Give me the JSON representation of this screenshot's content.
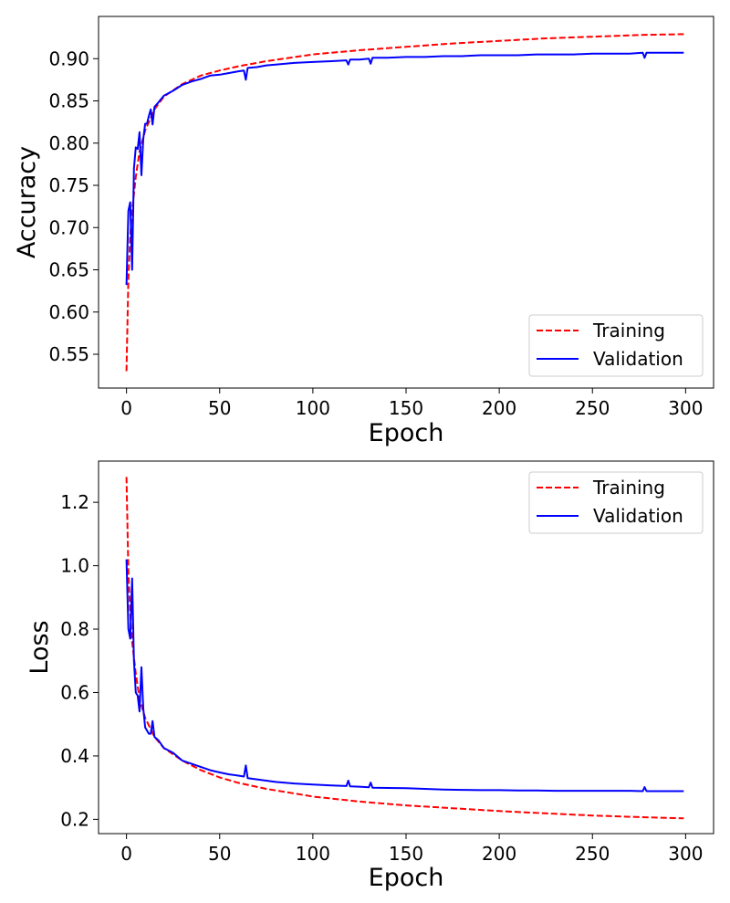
{
  "chart_data": [
    {
      "type": "line",
      "title": "",
      "xlabel": "Epoch",
      "ylabel": "Accuracy",
      "xlim": [
        -15,
        315
      ],
      "ylim": [
        0.51,
        0.95
      ],
      "xticks": [
        0,
        50,
        100,
        150,
        200,
        250,
        300
      ],
      "yticks": [
        0.55,
        0.6,
        0.65,
        0.7,
        0.75,
        0.8,
        0.85,
        0.9
      ],
      "ytick_labels": [
        "0.55",
        "0.60",
        "0.65",
        "0.70",
        "0.75",
        "0.80",
        "0.85",
        "0.90"
      ],
      "grid": false,
      "legend_position": "lower-right",
      "series": [
        {
          "name": "Training",
          "color": "#ff0000",
          "style": "dashed",
          "x": [
            0,
            1,
            2,
            3,
            5,
            7,
            10,
            15,
            20,
            30,
            40,
            50,
            60,
            75,
            100,
            125,
            150,
            175,
            200,
            225,
            250,
            275,
            299
          ],
          "y": [
            0.53,
            0.64,
            0.69,
            0.72,
            0.76,
            0.79,
            0.815,
            0.84,
            0.855,
            0.87,
            0.88,
            0.886,
            0.891,
            0.897,
            0.905,
            0.91,
            0.914,
            0.918,
            0.921,
            0.924,
            0.926,
            0.928,
            0.929
          ]
        },
        {
          "name": "Validation",
          "color": "#0000ff",
          "style": "solid",
          "x": [
            0,
            1,
            2,
            3,
            4,
            5,
            6,
            7,
            8,
            9,
            10,
            11,
            12,
            13,
            14,
            15,
            17,
            20,
            25,
            30,
            35,
            40,
            45,
            50,
            55,
            60,
            63,
            64,
            65,
            70,
            75,
            80,
            90,
            100,
            110,
            118,
            119,
            120,
            125,
            130,
            131,
            132,
            140,
            150,
            160,
            170,
            180,
            190,
            200,
            210,
            220,
            230,
            240,
            250,
            260,
            270,
            277,
            278,
            279,
            285,
            290,
            299
          ],
          "y": [
            0.632,
            0.72,
            0.73,
            0.65,
            0.77,
            0.795,
            0.793,
            0.813,
            0.762,
            0.805,
            0.823,
            0.823,
            0.832,
            0.84,
            0.822,
            0.843,
            0.848,
            0.856,
            0.862,
            0.869,
            0.873,
            0.876,
            0.88,
            0.881,
            0.883,
            0.885,
            0.886,
            0.875,
            0.889,
            0.89,
            0.892,
            0.893,
            0.895,
            0.896,
            0.897,
            0.898,
            0.893,
            0.899,
            0.899,
            0.9,
            0.894,
            0.901,
            0.901,
            0.902,
            0.902,
            0.903,
            0.903,
            0.904,
            0.904,
            0.904,
            0.905,
            0.905,
            0.905,
            0.906,
            0.906,
            0.906,
            0.907,
            0.901,
            0.907,
            0.907,
            0.907,
            0.907
          ]
        }
      ]
    },
    {
      "type": "line",
      "title": "",
      "xlabel": "Epoch",
      "ylabel": "Loss",
      "xlim": [
        -15,
        315
      ],
      "ylim": [
        0.155,
        1.33
      ],
      "xticks": [
        0,
        50,
        100,
        150,
        200,
        250,
        300
      ],
      "yticks": [
        0.2,
        0.4,
        0.6,
        0.8,
        1.0,
        1.2
      ],
      "ytick_labels": [
        "0.2",
        "0.4",
        "0.6",
        "0.8",
        "1.0",
        "1.2"
      ],
      "grid": false,
      "legend_position": "upper-right",
      "series": [
        {
          "name": "Training",
          "color": "#ff0000",
          "style": "dashed",
          "x": [
            0,
            1,
            2,
            3,
            5,
            7,
            10,
            15,
            20,
            30,
            40,
            50,
            60,
            75,
            100,
            125,
            150,
            175,
            200,
            225,
            250,
            275,
            299
          ],
          "y": [
            1.28,
            0.98,
            0.85,
            0.76,
            0.66,
            0.58,
            0.52,
            0.46,
            0.425,
            0.385,
            0.355,
            0.332,
            0.315,
            0.296,
            0.272,
            0.256,
            0.244,
            0.235,
            0.226,
            0.219,
            0.212,
            0.207,
            0.203
          ]
        },
        {
          "name": "Validation",
          "color": "#0000ff",
          "style": "solid",
          "x": [
            0,
            1,
            2,
            3,
            4,
            5,
            6,
            7,
            8,
            9,
            10,
            11,
            12,
            13,
            14,
            15,
            17,
            20,
            25,
            30,
            35,
            40,
            45,
            50,
            55,
            60,
            63,
            64,
            65,
            70,
            75,
            80,
            90,
            100,
            110,
            118,
            119,
            120,
            125,
            130,
            131,
            132,
            140,
            150,
            160,
            170,
            180,
            190,
            200,
            210,
            220,
            230,
            240,
            250,
            260,
            270,
            277,
            278,
            279,
            285,
            290,
            299
          ],
          "y": [
            1.02,
            0.8,
            0.77,
            0.96,
            0.7,
            0.6,
            0.59,
            0.54,
            0.68,
            0.55,
            0.49,
            0.48,
            0.47,
            0.47,
            0.51,
            0.46,
            0.45,
            0.425,
            0.41,
            0.385,
            0.375,
            0.365,
            0.355,
            0.348,
            0.342,
            0.338,
            0.335,
            0.37,
            0.33,
            0.326,
            0.322,
            0.318,
            0.313,
            0.31,
            0.307,
            0.305,
            0.322,
            0.304,
            0.303,
            0.301,
            0.316,
            0.3,
            0.299,
            0.298,
            0.296,
            0.294,
            0.293,
            0.292,
            0.292,
            0.291,
            0.291,
            0.29,
            0.29,
            0.29,
            0.29,
            0.29,
            0.289,
            0.302,
            0.289,
            0.289,
            0.289,
            0.289
          ]
        }
      ]
    }
  ]
}
